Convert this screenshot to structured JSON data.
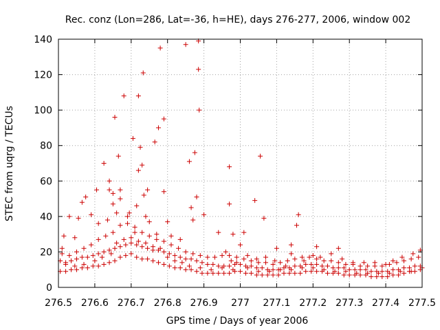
{
  "chart_data": {
    "type": "scatter",
    "title": "Rec. conz (Lon=286, Lat=-36, h=HE), days 276-277, 2006, window 002",
    "xlabel": "GPS time / Days of year 2006",
    "ylabel": "STEC from uqrg / TECUs",
    "xlim": [
      276.5,
      277.5
    ],
    "ylim": [
      0,
      140
    ],
    "xticks": [
      276.5,
      276.6,
      276.7,
      276.8,
      276.9,
      277,
      277.1,
      277.2,
      277.3,
      277.4,
      277.5
    ],
    "xtick_labels": [
      "276.5",
      "276.6",
      "276.7",
      "276.8",
      "276.9",
      "277",
      "277.1",
      "277.2",
      "277.3",
      "277.4",
      "277.5"
    ],
    "yticks": [
      0,
      20,
      40,
      60,
      80,
      100,
      120,
      140
    ],
    "ytick_labels": [
      "0",
      "20",
      "40",
      "60",
      "80",
      "100",
      "120",
      "140"
    ],
    "grid": true,
    "marker": "+",
    "marker_color": "#cc0000",
    "points": [
      [
        276.51,
        22
      ],
      [
        276.515,
        29
      ],
      [
        276.53,
        40
      ],
      [
        276.545,
        28
      ],
      [
        276.555,
        39
      ],
      [
        276.565,
        48
      ],
      [
        276.575,
        51
      ],
      [
        276.59,
        41
      ],
      [
        276.605,
        55
      ],
      [
        276.61,
        36
      ],
      [
        276.625,
        70
      ],
      [
        276.635,
        38
      ],
      [
        276.64,
        55
      ],
      [
        276.64,
        60
      ],
      [
        276.65,
        53
      ],
      [
        276.65,
        47
      ],
      [
        276.655,
        96
      ],
      [
        276.66,
        42
      ],
      [
        276.665,
        74
      ],
      [
        276.67,
        50
      ],
      [
        276.67,
        55
      ],
      [
        276.68,
        108
      ],
      [
        276.69,
        40
      ],
      [
        276.695,
        42
      ],
      [
        276.705,
        84
      ],
      [
        276.71,
        31
      ],
      [
        276.715,
        46
      ],
      [
        276.72,
        108
      ],
      [
        276.72,
        66
      ],
      [
        276.725,
        79
      ],
      [
        276.73,
        69
      ],
      [
        276.733,
        121
      ],
      [
        276.735,
        52
      ],
      [
        276.74,
        40
      ],
      [
        276.745,
        55
      ],
      [
        276.75,
        37
      ],
      [
        276.765,
        82
      ],
      [
        276.77,
        30
      ],
      [
        276.775,
        90
      ],
      [
        276.78,
        135
      ],
      [
        276.79,
        95
      ],
      [
        276.79,
        54
      ],
      [
        276.8,
        37
      ],
      [
        276.81,
        29
      ],
      [
        276.835,
        27
      ],
      [
        276.85,
        137
      ],
      [
        276.86,
        71
      ],
      [
        276.865,
        45
      ],
      [
        276.87,
        38
      ],
      [
        276.875,
        76
      ],
      [
        276.88,
        51
      ],
      [
        276.885,
        139
      ],
      [
        276.885,
        123
      ],
      [
        276.887,
        100
      ],
      [
        276.9,
        41
      ],
      [
        276.94,
        31
      ],
      [
        276.97,
        68
      ],
      [
        276.97,
        47
      ],
      [
        276.98,
        30
      ],
      [
        277.0,
        24
      ],
      [
        277.01,
        31
      ],
      [
        277.04,
        49
      ],
      [
        277.055,
        74
      ],
      [
        277.065,
        39
      ],
      [
        277.1,
        22
      ],
      [
        277.14,
        24
      ],
      [
        277.155,
        35
      ],
      [
        277.16,
        41
      ],
      [
        277.21,
        23
      ],
      [
        277.27,
        22
      ],
      [
        276.505,
        9
      ],
      [
        276.52,
        9
      ],
      [
        276.535,
        10
      ],
      [
        276.55,
        10
      ],
      [
        276.565,
        11
      ],
      [
        276.58,
        11
      ],
      [
        276.595,
        12
      ],
      [
        276.61,
        12
      ],
      [
        276.625,
        13
      ],
      [
        276.64,
        14
      ],
      [
        276.655,
        15
      ],
      [
        276.67,
        17
      ],
      [
        276.685,
        18
      ],
      [
        276.7,
        19
      ],
      [
        276.715,
        17
      ],
      [
        276.73,
        16
      ],
      [
        276.745,
        16
      ],
      [
        276.76,
        15
      ],
      [
        276.775,
        14
      ],
      [
        276.79,
        13
      ],
      [
        276.805,
        12
      ],
      [
        276.82,
        11
      ],
      [
        276.835,
        11
      ],
      [
        276.85,
        10
      ],
      [
        276.865,
        10
      ],
      [
        276.88,
        9
      ],
      [
        276.895,
        8
      ],
      [
        276.91,
        8
      ],
      [
        276.925,
        8
      ],
      [
        276.94,
        8
      ],
      [
        276.955,
        8
      ],
      [
        276.97,
        8
      ],
      [
        276.985,
        9
      ],
      [
        277.0,
        9
      ],
      [
        277.015,
        8
      ],
      [
        277.03,
        8
      ],
      [
        277.045,
        7
      ],
      [
        277.06,
        7
      ],
      [
        277.075,
        7
      ],
      [
        277.09,
        7
      ],
      [
        277.105,
        7
      ],
      [
        277.12,
        8
      ],
      [
        277.135,
        8
      ],
      [
        277.15,
        8
      ],
      [
        277.165,
        8
      ],
      [
        277.18,
        9
      ],
      [
        277.195,
        9
      ],
      [
        277.21,
        9
      ],
      [
        277.225,
        9
      ],
      [
        277.24,
        8
      ],
      [
        277.255,
        8
      ],
      [
        277.27,
        8
      ],
      [
        277.285,
        7
      ],
      [
        277.3,
        7
      ],
      [
        277.315,
        7
      ],
      [
        277.33,
        7
      ],
      [
        277.345,
        7
      ],
      [
        277.36,
        6
      ],
      [
        277.375,
        6
      ],
      [
        277.39,
        6
      ],
      [
        277.405,
        6
      ],
      [
        277.42,
        7
      ],
      [
        277.435,
        7
      ],
      [
        277.45,
        8
      ],
      [
        277.465,
        9
      ],
      [
        277.48,
        9
      ],
      [
        277.495,
        10
      ],
      [
        276.505,
        15
      ],
      [
        276.52,
        14
      ],
      [
        276.535,
        15
      ],
      [
        276.55,
        16
      ],
      [
        276.565,
        17
      ],
      [
        276.58,
        17
      ],
      [
        276.595,
        18
      ],
      [
        276.61,
        19
      ],
      [
        276.625,
        20
      ],
      [
        276.64,
        21
      ],
      [
        276.655,
        22
      ],
      [
        276.67,
        23
      ],
      [
        276.685,
        24
      ],
      [
        276.7,
        25
      ],
      [
        276.715,
        24
      ],
      [
        276.73,
        23
      ],
      [
        276.745,
        22
      ],
      [
        276.76,
        21
      ],
      [
        276.775,
        21
      ],
      [
        276.79,
        20
      ],
      [
        276.805,
        19
      ],
      [
        276.82,
        18
      ],
      [
        276.835,
        17
      ],
      [
        276.85,
        16
      ],
      [
        276.865,
        16
      ],
      [
        276.88,
        15
      ],
      [
        276.895,
        14
      ],
      [
        276.91,
        13
      ],
      [
        276.925,
        13
      ],
      [
        276.94,
        12
      ],
      [
        276.955,
        12
      ],
      [
        276.97,
        12
      ],
      [
        276.985,
        13
      ],
      [
        277.0,
        13
      ],
      [
        277.015,
        12
      ],
      [
        277.03,
        12
      ],
      [
        277.045,
        11
      ],
      [
        277.06,
        11
      ],
      [
        277.075,
        10
      ],
      [
        277.09,
        10
      ],
      [
        277.105,
        10
      ],
      [
        277.12,
        11
      ],
      [
        277.135,
        11
      ],
      [
        277.15,
        12
      ],
      [
        277.165,
        12
      ],
      [
        277.18,
        13
      ],
      [
        277.195,
        13
      ],
      [
        277.21,
        13
      ],
      [
        277.225,
        12
      ],
      [
        277.24,
        12
      ],
      [
        277.255,
        11
      ],
      [
        277.27,
        11
      ],
      [
        277.285,
        11
      ],
      [
        277.3,
        10
      ],
      [
        277.315,
        10
      ],
      [
        277.33,
        10
      ],
      [
        277.345,
        10
      ],
      [
        277.36,
        9
      ],
      [
        277.375,
        9
      ],
      [
        277.39,
        9
      ],
      [
        277.405,
        9
      ],
      [
        277.42,
        10
      ],
      [
        277.435,
        10
      ],
      [
        277.45,
        11
      ],
      [
        277.465,
        11
      ],
      [
        277.48,
        12
      ],
      [
        277.495,
        12
      ],
      [
        276.51,
        19
      ],
      [
        276.53,
        18
      ],
      [
        276.55,
        20
      ],
      [
        276.57,
        22
      ],
      [
        276.59,
        24
      ],
      [
        276.61,
        27
      ],
      [
        276.63,
        29
      ],
      [
        276.65,
        31
      ],
      [
        276.67,
        35
      ],
      [
        276.69,
        36
      ],
      [
        276.71,
        34
      ],
      [
        276.73,
        31
      ],
      [
        276.75,
        29
      ],
      [
        276.77,
        27
      ],
      [
        276.79,
        26
      ],
      [
        276.81,
        24
      ],
      [
        276.83,
        22
      ],
      [
        276.85,
        20
      ],
      [
        276.87,
        19
      ],
      [
        276.89,
        18
      ],
      [
        276.91,
        17
      ],
      [
        276.93,
        17
      ],
      [
        276.95,
        18
      ],
      [
        276.97,
        18
      ],
      [
        276.99,
        17
      ],
      [
        277.01,
        16
      ],
      [
        277.03,
        15
      ],
      [
        277.05,
        14
      ],
      [
        277.07,
        14
      ],
      [
        277.09,
        13
      ],
      [
        277.11,
        14
      ],
      [
        277.13,
        15
      ],
      [
        277.15,
        16
      ],
      [
        277.17,
        17
      ],
      [
        277.19,
        17
      ],
      [
        277.21,
        16
      ],
      [
        277.23,
        15
      ],
      [
        277.25,
        15
      ],
      [
        277.27,
        14
      ],
      [
        277.29,
        13
      ],
      [
        277.31,
        13
      ],
      [
        277.33,
        12
      ],
      [
        277.35,
        12
      ],
      [
        277.37,
        12
      ],
      [
        277.39,
        12
      ],
      [
        277.41,
        13
      ],
      [
        277.43,
        14
      ],
      [
        277.45,
        15
      ],
      [
        277.47,
        16
      ],
      [
        277.49,
        17
      ],
      [
        276.52,
        13
      ],
      [
        276.545,
        12
      ],
      [
        276.57,
        13
      ],
      [
        276.6,
        15
      ],
      [
        276.62,
        17
      ],
      [
        276.645,
        19
      ],
      [
        276.66,
        25
      ],
      [
        276.68,
        27
      ],
      [
        276.7,
        28
      ],
      [
        276.72,
        26
      ],
      [
        276.74,
        25
      ],
      [
        276.76,
        23
      ],
      [
        276.78,
        22
      ],
      [
        276.8,
        17
      ],
      [
        276.82,
        15
      ],
      [
        276.84,
        14
      ],
      [
        276.86,
        12
      ],
      [
        276.89,
        11
      ],
      [
        276.92,
        10
      ],
      [
        276.95,
        11
      ],
      [
        276.98,
        10
      ],
      [
        277.02,
        11
      ],
      [
        277.05,
        9
      ],
      [
        277.08,
        9
      ],
      [
        277.11,
        10
      ],
      [
        277.14,
        10
      ],
      [
        277.17,
        11
      ],
      [
        277.2,
        11
      ],
      [
        277.23,
        10
      ],
      [
        277.26,
        9
      ],
      [
        277.29,
        9
      ],
      [
        277.32,
        8
      ],
      [
        277.35,
        8
      ],
      [
        277.38,
        8
      ],
      [
        277.41,
        8
      ],
      [
        277.44,
        9
      ],
      [
        277.47,
        9
      ],
      [
        277.5,
        11
      ],
      [
        276.96,
        20
      ],
      [
        276.975,
        15
      ],
      [
        276.99,
        14
      ],
      [
        277.02,
        18
      ],
      [
        277.045,
        16
      ],
      [
        277.07,
        17
      ],
      [
        277.095,
        15
      ],
      [
        277.125,
        12
      ],
      [
        277.14,
        19
      ],
      [
        277.175,
        15
      ],
      [
        277.2,
        18
      ],
      [
        277.22,
        17
      ],
      [
        277.25,
        19
      ],
      [
        277.28,
        16
      ],
      [
        277.31,
        14
      ],
      [
        277.34,
        14
      ],
      [
        277.37,
        14
      ],
      [
        277.4,
        13
      ],
      [
        277.42,
        15
      ],
      [
        277.445,
        17
      ],
      [
        277.475,
        19
      ],
      [
        277.495,
        21
      ]
    ]
  }
}
